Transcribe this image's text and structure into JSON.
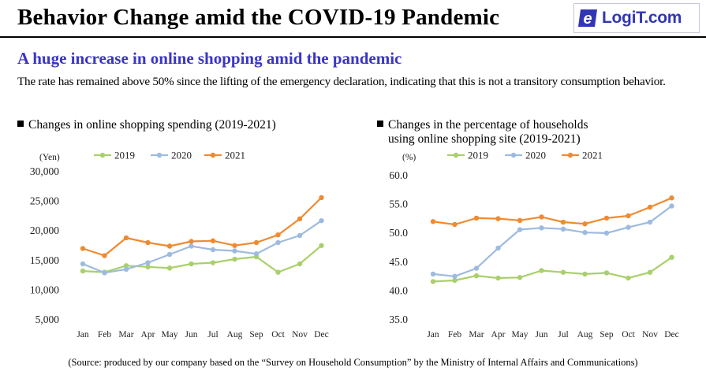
{
  "header": {
    "title": "Behavior Change amid the COVID-19 Pandemic",
    "logo_e": "e",
    "logo_text": "LogiT.com"
  },
  "subtitle": "A huge increase in online shopping amid the pandemic",
  "description": "The rate has remained above 50% since the lifting of the emergency declaration, indicating that this is not a transitory consumption behavior.",
  "source": "(Source: produced by our company based on the “Survey on Household Consumption” by the Ministry of Internal Affairs and Communications)",
  "colors": {
    "s2019": "#a9d06b",
    "s2020": "#9dbbe0",
    "s2021": "#ef8a31",
    "accent": "#3a35c8"
  },
  "chart_data": [
    {
      "type": "line",
      "heading": "Changes in online shopping spending (2019-2021)",
      "unit_label": "(Yen)",
      "categories": [
        "Jan",
        "Feb",
        "Mar",
        "Apr",
        "May",
        "Jun",
        "Jul",
        "Aug",
        "Sep",
        "Oct",
        "Nov",
        "Dec"
      ],
      "y_ticks": [
        "5,000",
        "10,000",
        "15,000",
        "20,000",
        "25,000",
        "30,000"
      ],
      "ylim": [
        3000,
        30000
      ],
      "legend_position": "top",
      "grid": false,
      "series": [
        {
          "name": "2019",
          "color": "#a9d06b",
          "values": [
            13100,
            12900,
            14000,
            13800,
            13600,
            14300,
            14500,
            15100,
            15500,
            12900,
            14300,
            17400
          ]
        },
        {
          "name": "2020",
          "color": "#9dbbe0",
          "values": [
            14300,
            12800,
            13400,
            14500,
            15900,
            17300,
            16700,
            16500,
            16000,
            17900,
            19100,
            21600
          ]
        },
        {
          "name": "2021",
          "color": "#ef8a31",
          "values": [
            16900,
            15700,
            18700,
            17900,
            17300,
            18100,
            18200,
            17400,
            17900,
            19200,
            21900,
            25500
          ]
        }
      ]
    },
    {
      "type": "line",
      "heading_line1": "Changes in the percentage of households",
      "heading_line2": "using online shopping site (2019-2021)",
      "unit_label": "(%)",
      "categories": [
        "Jan",
        "Feb",
        "Mar",
        "Apr",
        "May",
        "Jun",
        "Jul",
        "Aug",
        "Sep",
        "Oct",
        "Nov",
        "Dec"
      ],
      "y_ticks": [
        "35.0",
        "40.0",
        "45.0",
        "50.0",
        "55.0",
        "60.0"
      ],
      "ylim": [
        35,
        60
      ],
      "legend_position": "top",
      "grid": false,
      "series": [
        {
          "name": "2019",
          "color": "#a9d06b",
          "values": [
            41.5,
            41.7,
            42.5,
            42.1,
            42.2,
            43.4,
            43.1,
            42.8,
            43.0,
            42.1,
            43.1,
            45.7
          ]
        },
        {
          "name": "2020",
          "color": "#9dbbe0",
          "values": [
            42.8,
            42.4,
            43.8,
            47.3,
            50.5,
            50.8,
            50.6,
            50.0,
            49.9,
            50.9,
            51.8,
            54.6
          ]
        },
        {
          "name": "2021",
          "color": "#ef8a31",
          "values": [
            51.9,
            51.4,
            52.5,
            52.4,
            52.1,
            52.7,
            51.8,
            51.5,
            52.5,
            52.9,
            54.4,
            56.0
          ]
        }
      ]
    }
  ]
}
